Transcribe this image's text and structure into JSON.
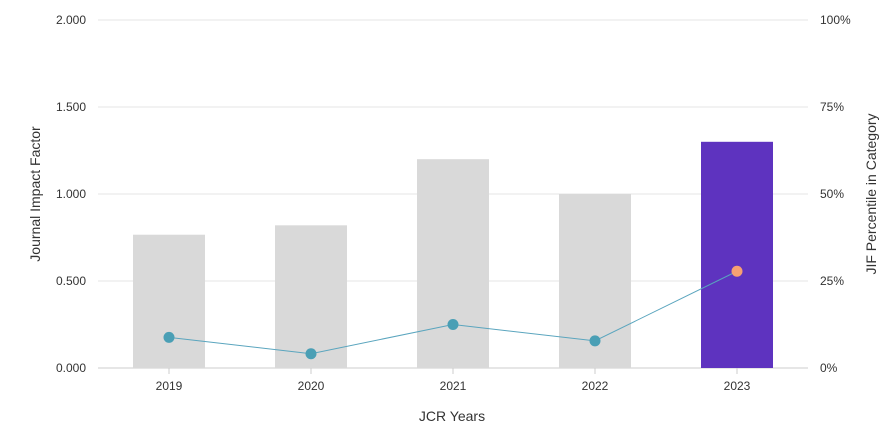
{
  "chart_data": {
    "type": "bar",
    "xlabel": "JCR Years",
    "ylabel": "Journal Impact Factor",
    "y2label": "JIF Percentile in Category",
    "categories": [
      "2019",
      "2020",
      "2021",
      "2022",
      "2023"
    ],
    "ylim": [
      0,
      2
    ],
    "y2lim": [
      0,
      100
    ],
    "yticks": [
      "0.000",
      "0.500",
      "1.000",
      "1.500",
      "2.000"
    ],
    "y2ticks": [
      "0%",
      "25%",
      "50%",
      "75%",
      "100%"
    ],
    "grid": true,
    "series": [
      {
        "name": "Journal Impact Factor",
        "type": "bar",
        "axis": "left",
        "values": [
          0.766,
          0.82,
          1.2,
          1.0,
          1.3
        ],
        "colors": [
          "#d9d9d9",
          "#d9d9d9",
          "#d9d9d9",
          "#d9d9d9",
          "#5e33bf"
        ]
      },
      {
        "name": "JIF Percentile in Category",
        "type": "line",
        "axis": "right",
        "values": [
          8.8,
          4.1,
          12.5,
          7.8,
          27.8
        ],
        "line_color": "#5aa5be",
        "marker_colors": [
          "#4a9fb5",
          "#4a9fb5",
          "#4a9fb5",
          "#4a9fb5",
          "#f7a072"
        ]
      }
    ]
  }
}
